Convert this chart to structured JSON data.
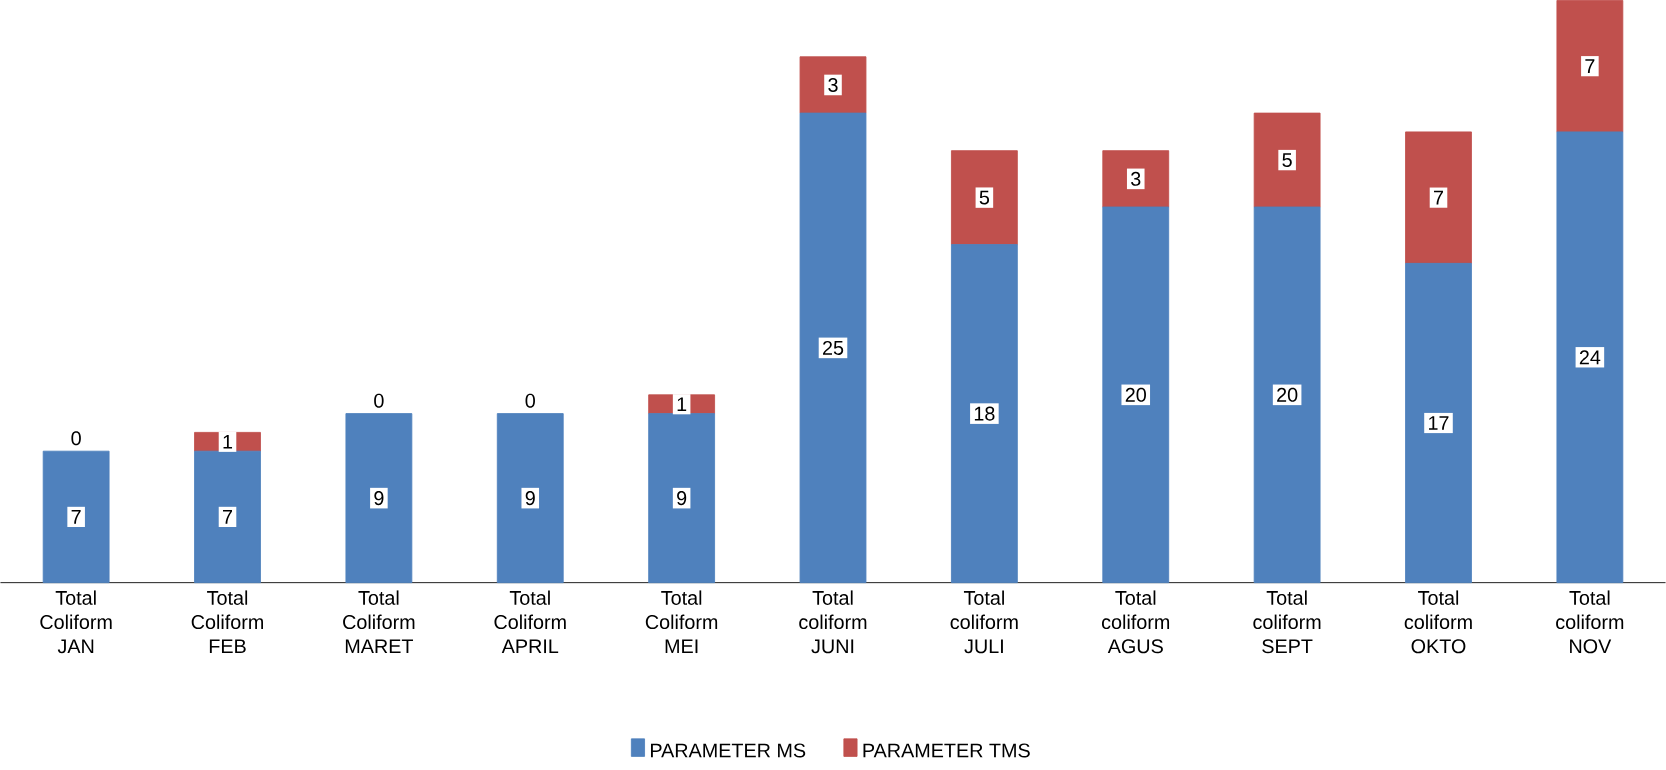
{
  "chart_data": {
    "type": "bar",
    "stacked": true,
    "categories": [
      "Total Coliform JAN",
      "Total Coliform FEB",
      "Total Coliform MARET",
      "Total Coliform APRIL",
      "Total Coliform MEI",
      "Total coliform JUNI",
      "Total coliform JULI",
      "Total coliform AGUS",
      "Total coliform SEPT",
      "Total coliform OKTO",
      "Total coliform NOV"
    ],
    "series": [
      {
        "name": "PARAMETER MS",
        "color": "#4f81bd",
        "values": [
          7,
          7,
          9,
          9,
          9,
          25,
          18,
          20,
          20,
          17,
          24
        ]
      },
      {
        "name": "PARAMETER TMS",
        "color": "#c0504d",
        "values": [
          0,
          1,
          0,
          0,
          1,
          3,
          5,
          3,
          5,
          7,
          7
        ]
      }
    ],
    "data_labels": true,
    "legend": "bottom"
  }
}
